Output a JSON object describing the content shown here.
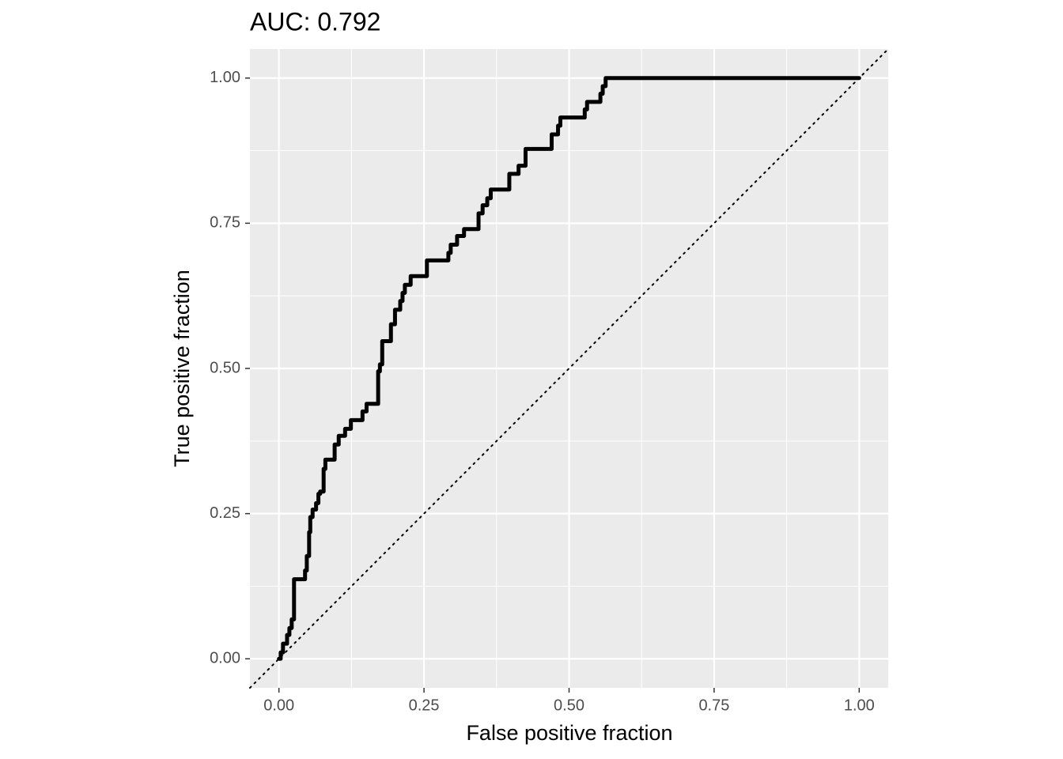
{
  "chart_data": {
    "type": "line",
    "title": "AUC: 0.792",
    "x_label": "False positive fraction",
    "y_label": "True positive fraction",
    "xlim": [
      -0.05,
      1.05
    ],
    "ylim": [
      -0.05,
      1.05
    ],
    "xticks": [
      {
        "value": 0,
        "label": "0.00"
      },
      {
        "value": 0.25,
        "label": "0.25"
      },
      {
        "value": 0.5,
        "label": "0.50"
      },
      {
        "value": 0.75,
        "label": "0.75"
      },
      {
        "value": 1,
        "label": "1.00"
      }
    ],
    "yticks": [
      {
        "value": 0,
        "label": "0.00"
      },
      {
        "value": 0.25,
        "label": "0.25"
      },
      {
        "value": 0.5,
        "label": "0.50"
      },
      {
        "value": 0.75,
        "label": "0.75"
      },
      {
        "value": 1,
        "label": "1.00"
      }
    ],
    "grid": true,
    "x": [
      0,
      0.003,
      0.003,
      0.007,
      0.007,
      0.014,
      0.014,
      0.018,
      0.018,
      0.022,
      0.022,
      0.026,
      0.026,
      0.045,
      0.045,
      0.048,
      0.048,
      0.052,
      0.052,
      0.054,
      0.054,
      0.058,
      0.058,
      0.064,
      0.064,
      0.068,
      0.068,
      0.071,
      0.071,
      0.077,
      0.077,
      0.08,
      0.08,
      0.096,
      0.096,
      0.103,
      0.103,
      0.114,
      0.114,
      0.124,
      0.124,
      0.144,
      0.144,
      0.151,
      0.151,
      0.171,
      0.171,
      0.174,
      0.174,
      0.178,
      0.178,
      0.193,
      0.193,
      0.2,
      0.2,
      0.209,
      0.209,
      0.213,
      0.213,
      0.217,
      0.217,
      0.227,
      0.227,
      0.255,
      0.255,
      0.292,
      0.292,
      0.296,
      0.296,
      0.307,
      0.307,
      0.319,
      0.319,
      0.344,
      0.344,
      0.351,
      0.351,
      0.359,
      0.359,
      0.365,
      0.365,
      0.397,
      0.397,
      0.413,
      0.413,
      0.425,
      0.425,
      0.47,
      0.47,
      0.481,
      0.481,
      0.485,
      0.485,
      0.527,
      0.527,
      0.531,
      0.531,
      0.554,
      0.554,
      0.558,
      0.558,
      0.563,
      0.563,
      1
    ],
    "series": [
      {
        "name": "ROC",
        "color": "#000000",
        "values": [
          0,
          0,
          0.011,
          0.011,
          0.026,
          0.026,
          0.041,
          0.041,
          0.053,
          0.053,
          0.068,
          0.068,
          0.137,
          0.137,
          0.152,
          0.152,
          0.177,
          0.177,
          0.218,
          0.218,
          0.244,
          0.244,
          0.257,
          0.257,
          0.268,
          0.268,
          0.284,
          0.284,
          0.288,
          0.288,
          0.327,
          0.327,
          0.343,
          0.343,
          0.369,
          0.369,
          0.384,
          0.384,
          0.396,
          0.396,
          0.411,
          0.411,
          0.426,
          0.426,
          0.439,
          0.439,
          0.495,
          0.495,
          0.507,
          0.507,
          0.547,
          0.547,
          0.576,
          0.576,
          0.601,
          0.601,
          0.616,
          0.616,
          0.63,
          0.63,
          0.644,
          0.644,
          0.659,
          0.659,
          0.686,
          0.686,
          0.699,
          0.699,
          0.713,
          0.713,
          0.728,
          0.728,
          0.74,
          0.74,
          0.767,
          0.767,
          0.781,
          0.781,
          0.793,
          0.793,
          0.808,
          0.808,
          0.835,
          0.835,
          0.849,
          0.849,
          0.878,
          0.878,
          0.903,
          0.903,
          0.918,
          0.918,
          0.932,
          0.932,
          0.946,
          0.946,
          0.959,
          0.959,
          0.973,
          0.973,
          0.986,
          0.986,
          1,
          1
        ]
      }
    ]
  }
}
